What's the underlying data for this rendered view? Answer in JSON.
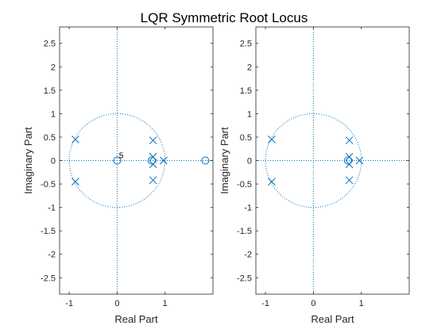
{
  "figure": {
    "title": "LQR Symmetric Root Locus"
  },
  "chart_data": [
    {
      "type": "scatter",
      "title": "",
      "xlabel": "Real Part",
      "ylabel": "Imaginary Part",
      "xlim": [
        -1.2,
        2.0
      ],
      "ylim": [
        -2.85,
        2.85
      ],
      "xticks": [
        -1,
        0,
        1
      ],
      "xtick_labels": [
        "-1",
        "0",
        "1"
      ],
      "yticks": [
        -2.5,
        -2,
        -1.5,
        -1,
        -0.5,
        0,
        0.5,
        1,
        1.5,
        2,
        2.5
      ],
      "ytick_labels": [
        "-2.5",
        "-2",
        "-1.5",
        "-1",
        "-0.5",
        "0",
        "0.5",
        "1",
        "1.5",
        "2",
        "2.5"
      ],
      "unit_circle": true,
      "grid_lines": "zero-axes dotted",
      "series": [
        {
          "marker": "x",
          "points": [
            [
              -0.87,
              0.45
            ],
            [
              -0.87,
              -0.45
            ],
            [
              0.75,
              0.43
            ],
            [
              0.75,
              0.08
            ],
            [
              0.75,
              -0.08
            ],
            [
              0.75,
              -0.42
            ],
            [
              0.97,
              0.0
            ]
          ]
        },
        {
          "marker": "o",
          "points": [
            [
              0.0,
              0.0
            ],
            [
              0.72,
              0.0
            ],
            [
              1.84,
              0.0
            ]
          ]
        }
      ],
      "annotations": [
        {
          "text": "5",
          "x": 0.04,
          "y": 0.05
        }
      ]
    },
    {
      "type": "scatter",
      "title": "",
      "xlabel": "Real Part",
      "ylabel": "Imaginary Part",
      "xlim": [
        -1.2,
        2.0
      ],
      "ylim": [
        -2.85,
        2.85
      ],
      "xticks": [
        -1,
        0,
        1
      ],
      "xtick_labels": [
        "-1",
        "0",
        "1"
      ],
      "yticks": [
        -2.5,
        -2,
        -1.5,
        -1,
        -0.5,
        0,
        0.5,
        1,
        1.5,
        2,
        2.5
      ],
      "ytick_labels": [
        "-2.5",
        "-2",
        "-1.5",
        "-1",
        "-0.5",
        "0",
        "0.5",
        "1",
        "1.5",
        "2",
        "2.5"
      ],
      "unit_circle": true,
      "grid_lines": "zero-axes dotted",
      "series": [
        {
          "marker": "x",
          "points": [
            [
              -0.87,
              0.45
            ],
            [
              -0.87,
              -0.45
            ],
            [
              0.75,
              0.43
            ],
            [
              0.75,
              0.08
            ],
            [
              0.75,
              -0.08
            ],
            [
              0.75,
              -0.42
            ],
            [
              0.96,
              0.0
            ]
          ]
        },
        {
          "marker": "o",
          "points": [
            [
              0.72,
              0.0
            ]
          ]
        }
      ],
      "annotations": []
    }
  ],
  "colors": {
    "marker": "#0072BD",
    "axis": "#262626"
  }
}
